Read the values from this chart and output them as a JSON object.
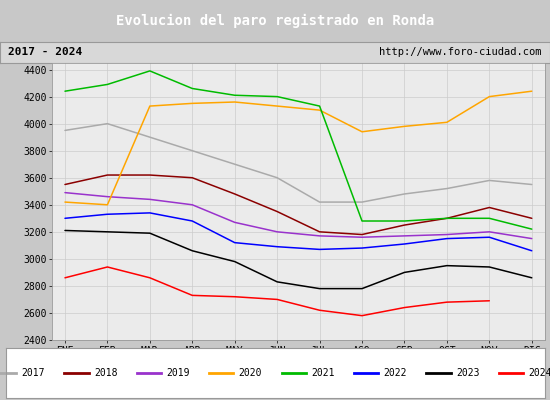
{
  "title": "Evolucion del paro registrado en Ronda",
  "subtitle_left": "2017 - 2024",
  "subtitle_right": "http://www.foro-ciudad.com",
  "months": [
    "ENE",
    "FEB",
    "MAR",
    "ABR",
    "MAY",
    "JUN",
    "JUL",
    "AGO",
    "SEP",
    "OCT",
    "NOV",
    "DIC"
  ],
  "series": {
    "2017": [
      3950,
      4000,
      3900,
      3800,
      3700,
      3600,
      3420,
      3420,
      3480,
      3520,
      3580,
      3550
    ],
    "2018": [
      3550,
      3620,
      3620,
      3600,
      3480,
      3350,
      3200,
      3180,
      3250,
      3300,
      3380,
      3300
    ],
    "2019": [
      3490,
      3460,
      3440,
      3400,
      3270,
      3200,
      3170,
      3160,
      3170,
      3180,
      3200,
      3150
    ],
    "2020": [
      3420,
      3400,
      4130,
      4150,
      4160,
      4130,
      4100,
      3940,
      3980,
      4010,
      4200,
      4240
    ],
    "2021": [
      4240,
      4290,
      4390,
      4260,
      4210,
      4200,
      4130,
      3280,
      3280,
      3300,
      3300,
      3220
    ],
    "2022": [
      3300,
      3330,
      3340,
      3280,
      3120,
      3090,
      3070,
      3080,
      3110,
      3150,
      3160,
      3060
    ],
    "2023": [
      3210,
      3200,
      3190,
      3060,
      2980,
      2830,
      2780,
      2780,
      2900,
      2950,
      2940,
      2860
    ],
    "2024": [
      2860,
      2940,
      2860,
      2730,
      2720,
      2700,
      2620,
      2580,
      2640,
      2680,
      2690,
      null
    ]
  },
  "colors": {
    "2017": "#aaaaaa",
    "2018": "#8b0000",
    "2019": "#9932cc",
    "2020": "#ffa500",
    "2021": "#00bb00",
    "2022": "#0000ff",
    "2023": "#000000",
    "2024": "#ff0000"
  },
  "ylim": [
    2400,
    4450
  ],
  "yticks": [
    2400,
    2600,
    2800,
    3000,
    3200,
    3400,
    3600,
    3800,
    4000,
    4200,
    4400
  ],
  "title_bg_color": "#4488cc",
  "title_text_color": "#ffffff",
  "header_bg_color": "#d8d8d8",
  "plot_bg_color": "#ebebeb",
  "grid_color": "#cccccc",
  "fig_bg_color": "#c8c8c8"
}
